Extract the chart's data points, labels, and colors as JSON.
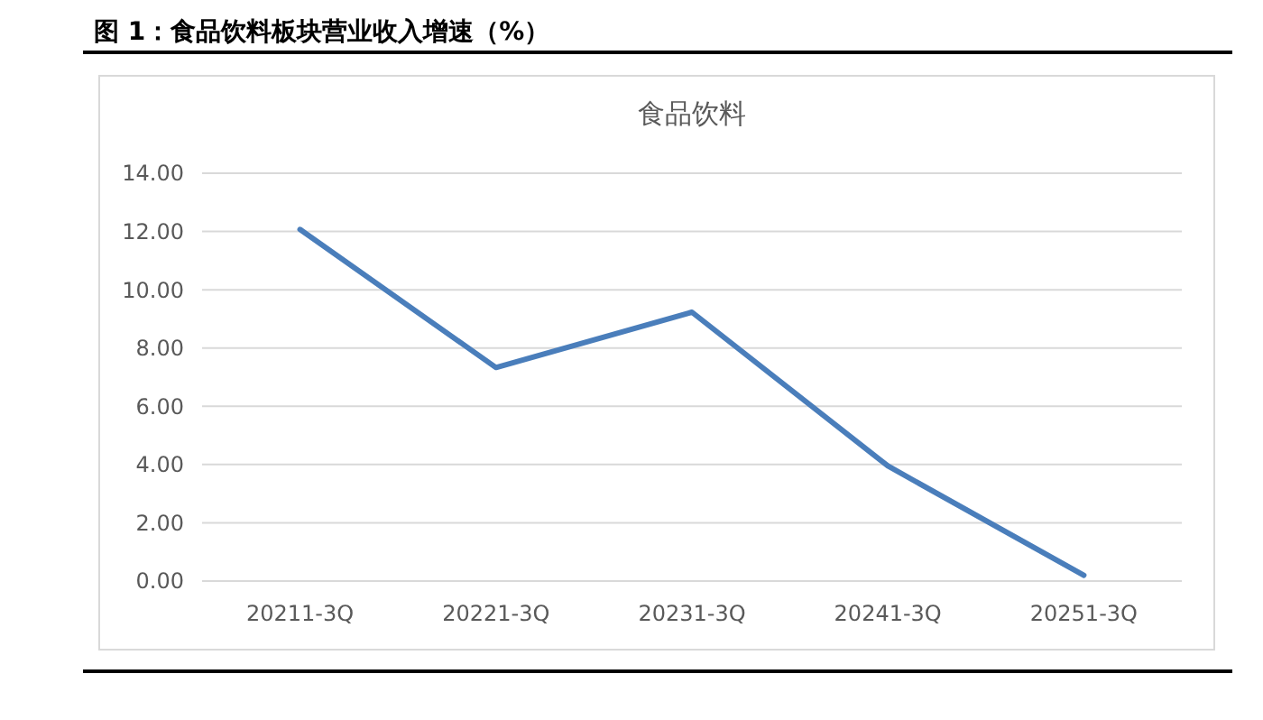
{
  "chart_data": {
    "type": "line",
    "title": "图 1：食品饮料板块营业收入增速（%）",
    "subtitle": "食品饮料",
    "categories": [
      "20211-3Q",
      "20221-3Q",
      "20231-3Q",
      "20241-3Q",
      "20251-3Q"
    ],
    "series": [
      {
        "color": "#4a7ebb",
        "values": [
          12.07,
          7.33,
          9.23,
          3.95,
          0.2
        ]
      }
    ],
    "ylim": [
      0,
      14
    ],
    "yticks": [
      {
        "value": 0,
        "label": "0.00"
      },
      {
        "value": 2,
        "label": "2.00"
      },
      {
        "value": 4,
        "label": "4.00"
      },
      {
        "value": 6,
        "label": "6.00"
      },
      {
        "value": 8,
        "label": "8.00"
      },
      {
        "value": 10,
        "label": "10.00"
      },
      {
        "value": 12,
        "label": "12.00"
      },
      {
        "value": 14,
        "label": "14.00"
      }
    ],
    "grid": "y",
    "marker": "none",
    "line_style": "solid"
  }
}
